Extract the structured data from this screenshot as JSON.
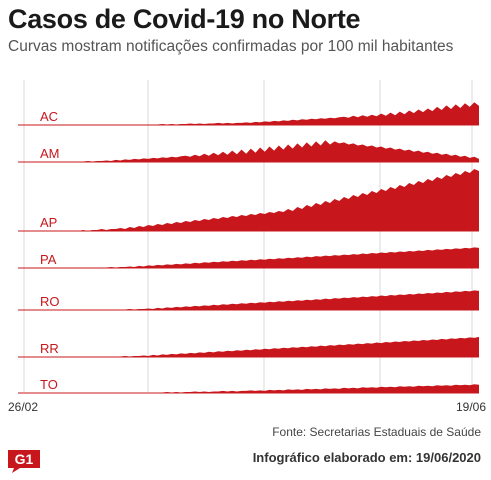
{
  "header": {
    "title": "Casos de Covid-19 no Norte",
    "subtitle": "Curvas mostram notificações confirmadas por 100 mil habitantes"
  },
  "footer": {
    "source": "Fonte: Secretarias Estaduais de Saúde",
    "credit": "Infográfico elaborado em: 19/06/2020",
    "logo": "G1"
  },
  "colors": {
    "fill": "#c8171c",
    "baseline": "#c8171c",
    "grid": "#d9d9d9",
    "label": "#c8171c"
  },
  "chart_data": {
    "type": "area",
    "title": "Casos de Covid-19 no Norte",
    "subtitle": "Curvas mostram notificações confirmadas por 100 mil habitantes",
    "x_start_label": "26/02",
    "x_end_label": "19/06",
    "grid": true,
    "series": [
      {
        "name": "AC",
        "values": [
          0,
          0,
          0,
          0,
          0,
          0,
          0,
          0,
          0,
          0,
          0,
          0,
          0,
          0,
          0,
          0,
          0,
          0,
          0,
          0,
          0,
          0,
          0,
          1,
          0,
          1,
          0,
          1,
          1,
          1,
          1,
          2,
          1,
          2,
          1,
          2,
          2,
          3,
          2,
          3,
          2,
          3,
          3,
          4,
          3,
          4,
          3,
          4,
          4,
          5,
          4,
          6,
          5,
          7,
          6,
          8,
          7,
          9,
          8,
          10,
          9,
          11,
          10,
          12,
          11,
          13,
          12,
          14,
          13,
          15,
          16,
          14,
          18,
          15,
          19,
          16,
          20,
          17,
          22,
          18,
          24,
          19,
          26,
          21,
          28,
          23,
          30,
          25,
          32,
          27,
          35,
          29,
          38,
          31,
          40,
          33,
          42,
          35,
          44,
          37
        ]
      },
      {
        "name": "AM",
        "values": [
          0,
          0,
          0,
          0,
          0,
          0,
          0,
          0,
          0,
          0,
          0,
          1,
          0,
          1,
          1,
          2,
          1,
          2,
          2,
          3,
          2,
          4,
          3,
          5,
          4,
          6,
          5,
          7,
          6,
          8,
          7,
          9,
          8,
          10,
          9,
          11,
          12,
          10,
          14,
          11,
          16,
          12,
          18,
          13,
          20,
          14,
          22,
          15,
          24,
          16,
          26,
          18,
          28,
          20,
          30,
          22,
          32,
          24,
          34,
          26,
          36,
          28,
          38,
          30,
          40,
          32,
          42,
          34,
          40,
          36,
          38,
          34,
          36,
          32,
          34,
          30,
          32,
          28,
          30,
          26,
          28,
          24,
          26,
          22,
          24,
          20,
          22,
          18,
          20,
          16,
          18,
          14,
          16,
          12,
          14,
          10,
          12,
          8,
          10,
          6
        ]
      },
      {
        "name": "AP",
        "values": [
          0,
          0,
          0,
          0,
          0,
          0,
          0,
          0,
          0,
          0,
          0,
          0,
          0,
          0,
          1,
          0,
          1,
          1,
          2,
          1,
          2,
          2,
          3,
          2,
          4,
          3,
          5,
          4,
          6,
          5,
          7,
          6,
          8,
          7,
          9,
          8,
          10,
          9,
          11,
          10,
          12,
          11,
          13,
          12,
          14,
          13,
          15,
          14,
          16,
          15,
          17,
          16,
          18,
          17,
          19,
          18,
          20,
          19,
          22,
          20,
          24,
          22,
          26,
          24,
          28,
          26,
          30,
          28,
          32,
          30,
          34,
          32,
          36,
          34,
          38,
          36,
          40,
          38,
          42,
          40,
          44,
          42,
          46,
          44,
          48,
          46,
          50,
          48,
          52,
          50,
          54,
          52,
          56,
          54,
          58,
          56,
          60,
          58,
          62,
          60
        ]
      },
      {
        "name": "PA",
        "values": [
          0,
          0,
          0,
          0,
          0,
          0,
          0,
          0,
          0,
          0,
          0,
          0,
          0,
          0,
          0,
          0,
          1,
          0,
          1,
          1,
          2,
          1,
          2,
          2,
          3,
          2,
          4,
          3,
          5,
          4,
          6,
          5,
          7,
          6,
          8,
          7,
          9,
          8,
          10,
          9,
          11,
          10,
          12,
          11,
          13,
          12,
          14,
          13,
          15,
          14,
          16,
          15,
          17,
          16,
          18,
          17,
          19,
          18,
          20,
          19,
          21,
          20,
          22,
          21,
          23,
          22,
          24,
          23,
          25,
          24,
          26,
          25,
          27,
          26,
          28,
          27,
          29,
          28,
          30,
          29,
          31,
          30,
          32,
          31,
          33,
          32,
          34,
          33,
          35,
          34,
          36,
          35,
          37,
          36,
          38,
          37,
          39,
          38,
          40,
          39
        ]
      },
      {
        "name": "RO",
        "values": [
          0,
          0,
          0,
          0,
          0,
          0,
          0,
          0,
          0,
          0,
          0,
          0,
          0,
          0,
          0,
          0,
          0,
          0,
          0,
          0,
          1,
          0,
          1,
          1,
          2,
          1,
          2,
          2,
          3,
          2,
          4,
          3,
          5,
          4,
          6,
          5,
          7,
          6,
          8,
          7,
          9,
          8,
          10,
          9,
          11,
          10,
          12,
          11,
          13,
          12,
          14,
          13,
          15,
          14,
          16,
          15,
          17,
          16,
          18,
          17,
          19,
          18,
          20,
          19,
          21,
          20,
          22,
          21,
          23,
          22,
          24,
          23,
          25,
          24,
          26,
          25,
          27,
          26,
          28,
          27,
          29,
          28,
          30,
          29,
          31,
          30,
          32,
          31,
          33,
          32,
          34,
          33,
          35,
          34,
          36,
          35,
          37,
          36,
          38,
          37
        ]
      },
      {
        "name": "RR",
        "values": [
          0,
          0,
          0,
          0,
          0,
          0,
          0,
          0,
          0,
          0,
          0,
          0,
          0,
          0,
          0,
          0,
          0,
          0,
          0,
          1,
          0,
          1,
          1,
          2,
          1,
          2,
          2,
          3,
          2,
          4,
          3,
          5,
          4,
          6,
          5,
          7,
          6,
          8,
          7,
          9,
          8,
          10,
          9,
          11,
          10,
          12,
          11,
          13,
          12,
          14,
          13,
          15,
          14,
          16,
          15,
          17,
          16,
          18,
          17,
          19,
          18,
          20,
          19,
          21,
          20,
          22,
          21,
          23,
          22,
          24,
          23,
          25,
          24,
          26,
          25,
          27,
          26,
          28,
          27,
          29,
          28,
          30,
          29,
          31,
          30,
          32,
          31,
          33,
          32,
          34,
          33,
          35,
          34,
          36,
          35,
          37,
          36,
          38,
          37,
          39
        ]
      },
      {
        "name": "TO",
        "values": [
          0,
          0,
          0,
          0,
          0,
          0,
          0,
          0,
          0,
          0,
          0,
          0,
          0,
          0,
          0,
          0,
          0,
          0,
          0,
          0,
          0,
          0,
          0,
          0,
          1,
          0,
          1,
          0,
          1,
          1,
          1,
          1,
          2,
          1,
          2,
          1,
          2,
          2,
          3,
          2,
          3,
          2,
          3,
          3,
          4,
          3,
          4,
          3,
          4,
          4,
          5,
          4,
          5,
          4,
          6,
          5,
          6,
          5,
          7,
          6,
          7,
          6,
          8,
          7,
          8,
          7,
          9,
          8,
          9,
          8,
          10,
          9,
          10,
          9,
          11,
          10,
          11,
          10,
          12,
          11,
          12,
          11,
          13,
          12,
          13,
          12,
          14,
          13,
          14,
          13,
          15,
          14,
          15,
          14,
          16,
          15,
          16,
          15,
          17,
          16
        ]
      }
    ]
  }
}
